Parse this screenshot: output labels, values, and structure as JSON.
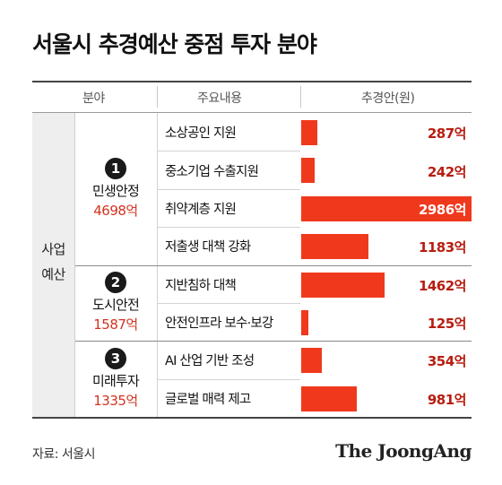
{
  "title": "서울시 추경예산 중점 투자 분야",
  "headers": {
    "field": "분야",
    "content": "주요내용",
    "amount": "추경안(원)"
  },
  "category": {
    "line1": "사업",
    "line2": "예산"
  },
  "colors": {
    "bar": "#f0391c",
    "value": "#b81d10",
    "total": "#d3331f"
  },
  "chart_data": {
    "type": "bar",
    "orientation": "horizontal",
    "unit": "억",
    "groups": [
      {
        "number": "1",
        "name": "민생안정",
        "total": "4698억",
        "items": [
          {
            "label": "소상공인 지원",
            "value": 287,
            "value_label": "287억"
          },
          {
            "label": "중소기업 수출지원",
            "value": 242,
            "value_label": "242억"
          },
          {
            "label": "취약계층 지원",
            "value": 2986,
            "value_label": "2986억"
          },
          {
            "label": "저출생 대책 강화",
            "value": 1183,
            "value_label": "1183억"
          }
        ]
      },
      {
        "number": "2",
        "name": "도시안전",
        "total": "1587억",
        "items": [
          {
            "label": "지반침하 대책",
            "value": 1462,
            "value_label": "1462억"
          },
          {
            "label": "안전인프라 보수·보강",
            "value": 125,
            "value_label": "125억"
          }
        ]
      },
      {
        "number": "3",
        "name": "미래투자",
        "total": "1335억",
        "items": [
          {
            "label": "AI 산업 기반 조성",
            "value": 354,
            "value_label": "354억"
          },
          {
            "label": "글로벌 매력 제고",
            "value": 981,
            "value_label": "981억"
          }
        ]
      }
    ],
    "xlim": [
      0,
      2986
    ]
  },
  "footer": {
    "source": "자료: 서울시",
    "brand": "The JoongAng"
  }
}
